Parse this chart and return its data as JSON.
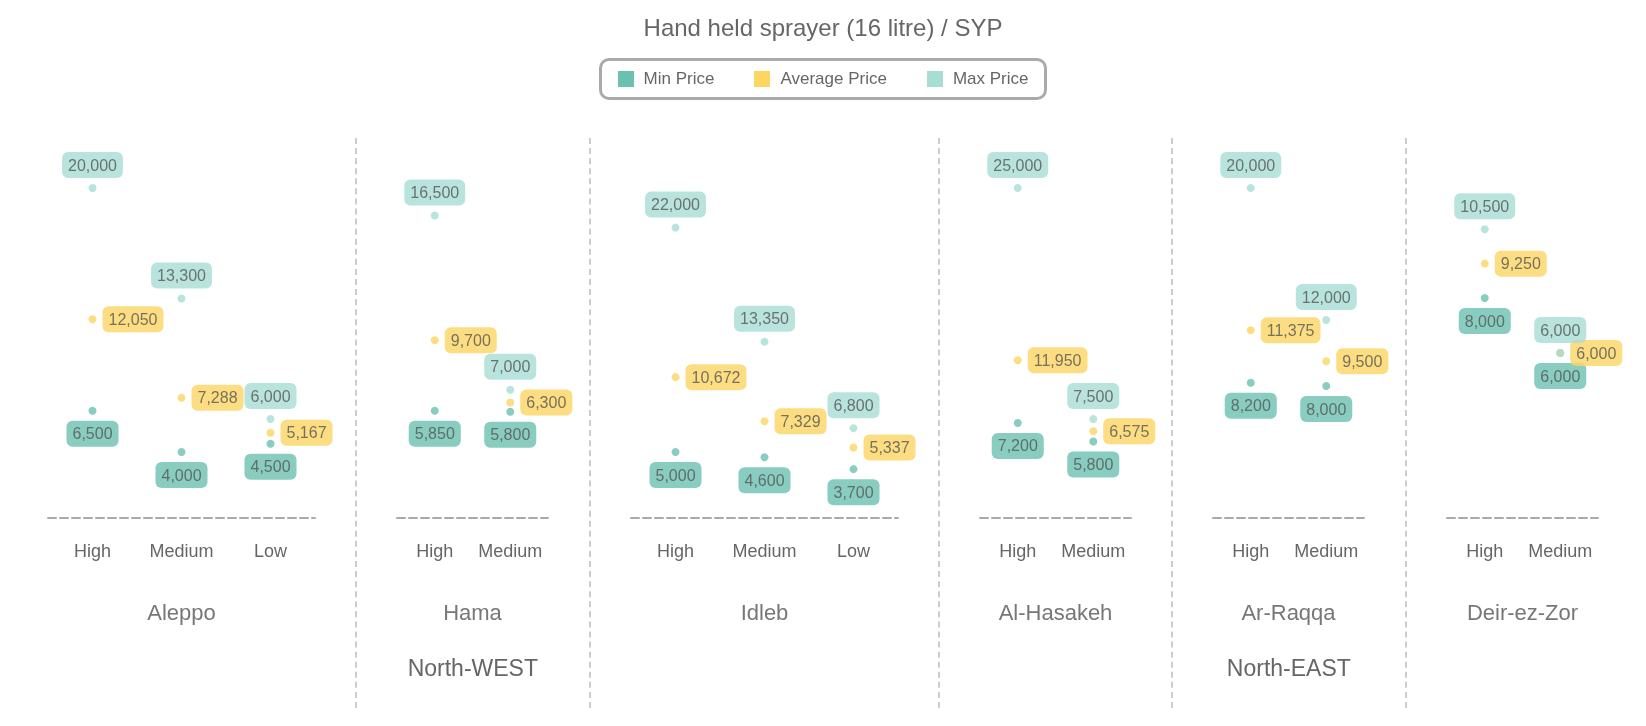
{
  "chart_data": [
    {
      "type": "other",
      "title": "Hand held sprayer (16 litre) / SYP"
    },
    {
      "type": "scatter",
      "title": "Aleppo",
      "categories": [
        "High",
        "Medium",
        "Low"
      ],
      "tick_labels": "x",
      "legend": "top",
      "series": [
        {
          "name": "Min Price",
          "color": "#6cc0b2",
          "values": [
            6500,
            4000,
            4500
          ],
          "value_labels": [
            "6,500",
            "4,000",
            "4,500"
          ]
        },
        {
          "name": "Average Price",
          "color": "#fdd562",
          "values": [
            12050,
            7288,
            5167
          ],
          "value_labels": [
            "12,050",
            "7,288",
            "5,167"
          ]
        },
        {
          "name": "Max Price",
          "color": "#a8ddd4",
          "values": [
            20000,
            13300,
            6000
          ],
          "value_labels": [
            "20,000",
            "13,300",
            "6,000"
          ]
        }
      ]
    },
    {
      "type": "scatter",
      "title": "Hama",
      "categories": [
        "High",
        "Medium"
      ],
      "tick_labels": "x",
      "annotations": [
        "North-WEST"
      ],
      "series": [
        {
          "color": "#6cc0b2",
          "values": [
            5850,
            5800
          ],
          "value_labels": [
            "5,850",
            "5,800"
          ]
        },
        {
          "color": "#fdd562",
          "values": [
            9700,
            6300
          ],
          "value_labels": [
            "9,700",
            "6,300"
          ]
        },
        {
          "color": "#a8ddd4",
          "values": [
            16500,
            7000
          ],
          "value_labels": [
            "16,500",
            "7,000"
          ]
        }
      ]
    },
    {
      "type": "scatter",
      "title": "Idleb",
      "categories": [
        "High",
        "Medium",
        "Low"
      ],
      "tick_labels": "x",
      "series": [
        {
          "color": "#6cc0b2",
          "values": [
            5000,
            4600,
            3700
          ],
          "value_labels": [
            "5,000",
            "4,600",
            "3,700"
          ]
        },
        {
          "color": "#fdd562",
          "values": [
            10672,
            7329,
            5337
          ],
          "value_labels": [
            "10,672",
            "7,329",
            "5,337"
          ]
        },
        {
          "color": "#a8ddd4",
          "values": [
            22000,
            13350,
            6800
          ],
          "value_labels": [
            "22,000",
            "13,350",
            "6,800"
          ]
        }
      ]
    },
    {
      "type": "scatter",
      "title": "Al-Hasakeh",
      "categories": [
        "High",
        "Medium"
      ],
      "tick_labels": "x",
      "series": [
        {
          "color": "#6cc0b2",
          "values": [
            7200,
            5800
          ],
          "value_labels": [
            "7,200",
            "5,800"
          ]
        },
        {
          "color": "#fdd562",
          "values": [
            11950,
            6575
          ],
          "value_labels": [
            "11,950",
            "6,575"
          ]
        },
        {
          "color": "#a8ddd4",
          "values": [
            25000,
            7500
          ],
          "value_labels": [
            "25,000",
            "7,500"
          ]
        }
      ]
    },
    {
      "type": "scatter",
      "title": "Ar-Raqqa",
      "categories": [
        "High",
        "Medium"
      ],
      "tick_labels": "x",
      "annotations": [
        "North-EAST"
      ],
      "series": [
        {
          "color": "#6cc0b2",
          "values": [
            8200,
            8000
          ],
          "value_labels": [
            "8,200",
            "8,000"
          ]
        },
        {
          "color": "#fdd562",
          "values": [
            11375,
            9500
          ],
          "value_labels": [
            "11,375",
            "9,500"
          ]
        },
        {
          "color": "#a8ddd4",
          "values": [
            20000,
            12000
          ],
          "value_labels": [
            "20,000",
            "12,000"
          ]
        }
      ]
    },
    {
      "type": "scatter",
      "title": "Deir-ez-Zor",
      "categories": [
        "High",
        "Medium"
      ],
      "tick_labels": "x",
      "series": [
        {
          "color": "#6cc0b2",
          "values": [
            8000,
            6000
          ],
          "value_labels": [
            "8,000",
            "6,000"
          ]
        },
        {
          "color": "#fdd562",
          "values": [
            9250,
            6000
          ],
          "value_labels": [
            "9,250",
            "6,000"
          ]
        },
        {
          "color": "#a8ddd4",
          "values": [
            10500,
            6000
          ],
          "value_labels": [
            "10,500",
            "6,000"
          ]
        }
      ]
    }
  ]
}
